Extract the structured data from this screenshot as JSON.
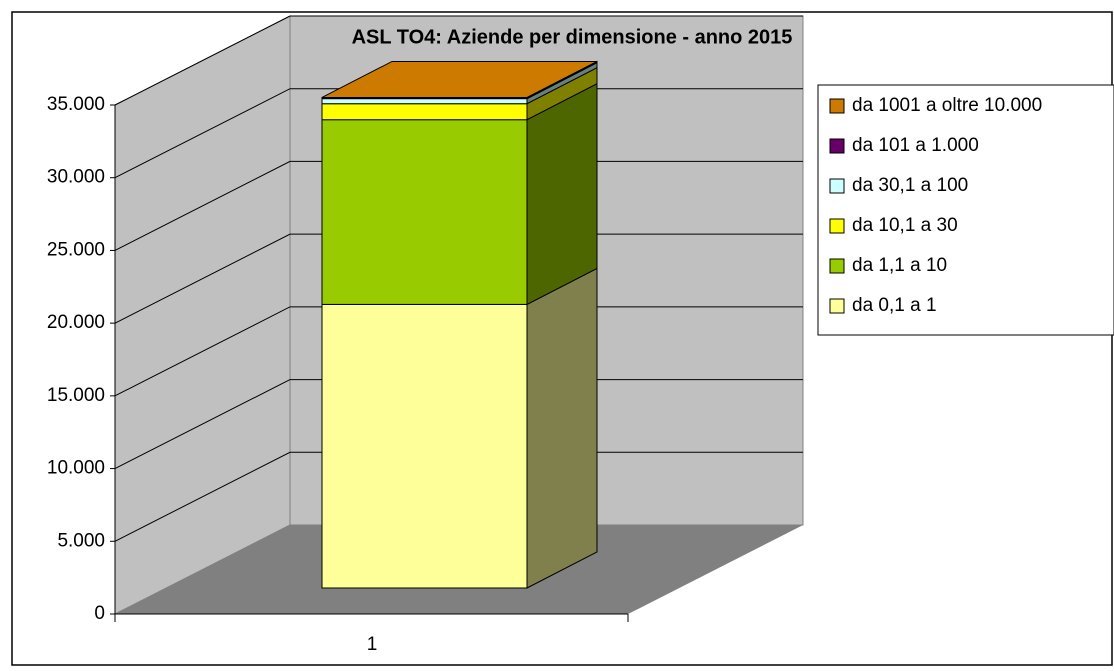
{
  "chart_data": {
    "type": "stacked_bar_3d",
    "title": "ASL TO4: Aziende per dimensione - anno 2015",
    "categories": [
      "1"
    ],
    "series": [
      {
        "name": "da 0,1 a 1",
        "color": "#ffff99",
        "values": [
          19500
        ]
      },
      {
        "name": "da 1,1 a 10",
        "color": "#99cc00",
        "values": [
          12700
        ]
      },
      {
        "name": "da 10,1 a 30",
        "color": "#ffff00",
        "values": [
          1100
        ]
      },
      {
        "name": "da 30,1 a 100",
        "color": "#ccffff",
        "values": [
          350
        ]
      },
      {
        "name": "da 101 a 1.000",
        "color": "#660066",
        "values": [
          50
        ]
      },
      {
        "name": "da 1001 a oltre 10.000",
        "color": "#cc7a00",
        "values": [
          30
        ]
      }
    ],
    "ylim": [
      0,
      35000
    ],
    "yticks": [
      {
        "value": 0,
        "label": "0"
      },
      {
        "value": 5000,
        "label": "5.000"
      },
      {
        "value": 10000,
        "label": "10.000"
      },
      {
        "value": 15000,
        "label": "15.000"
      },
      {
        "value": 20000,
        "label": "20.000"
      },
      {
        "value": 25000,
        "label": "25.000"
      },
      {
        "value": 30000,
        "label": "30.000"
      },
      {
        "value": 35000,
        "label": "35.000"
      }
    ],
    "grid": true
  }
}
